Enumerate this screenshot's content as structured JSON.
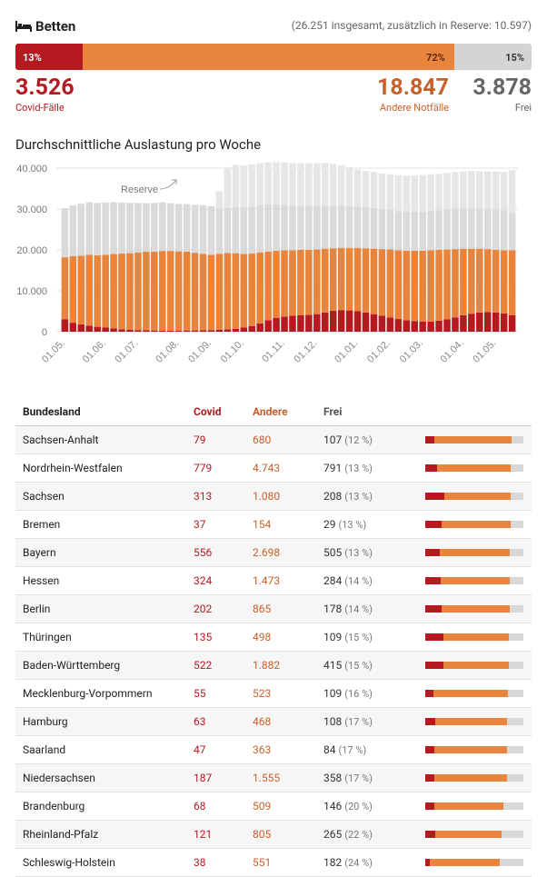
{
  "header": {
    "title": "Betten",
    "total_note": "(26.251 insgesamt, zusätzlich in Reserve: 10.597)"
  },
  "summary_bar": {
    "covid_pct": "13%",
    "other_pct": "72%",
    "free_pct": "15%",
    "covid_share": 13,
    "other_share": 72,
    "free_share": 15
  },
  "stats": {
    "covid": {
      "value": "3.526",
      "label": "Covid-Fälle"
    },
    "other": {
      "value": "18.847",
      "label": "Andere Notfälle"
    },
    "free": {
      "value": "3.878",
      "label": "Frei"
    }
  },
  "colors": {
    "covid": "#b51a20",
    "other": "#e8843c",
    "free": "#d4d4d4"
  },
  "chart_data": {
    "type": "bar",
    "title": "Durchschnittliche Auslastung pro Woche",
    "ylim": [
      0,
      40000
    ],
    "yticks": [
      "40.000",
      "30.000",
      "20.000",
      "10.000",
      "0"
    ],
    "ytick_values": [
      40000,
      30000,
      20000,
      10000,
      0
    ],
    "xtick_labels": [
      "01.05.",
      "01.06.",
      "01.07.",
      "01.08.",
      "01.09.",
      "01.10.",
      "01.11.",
      "01.12.",
      "01.01.",
      "01.02.",
      "01.03.",
      "01.04.",
      "01.05."
    ],
    "xtick_week_index": [
      0,
      5,
      9,
      14,
      18,
      22,
      27,
      31,
      36,
      40,
      44,
      49,
      53
    ],
    "annotation": "Reserve",
    "stacked": true,
    "series": [
      {
        "name": "Covid",
        "values": [
          3000,
          2200,
          1800,
          1500,
          1200,
          1000,
          800,
          600,
          500,
          400,
          350,
          300,
          250,
          250,
          250,
          300,
          300,
          350,
          400,
          450,
          550,
          700,
          1000,
          1400,
          2000,
          2800,
          3400,
          3700,
          3900,
          4000,
          4100,
          4300,
          4700,
          5100,
          5300,
          5200,
          5000,
          4700,
          4300,
          3900,
          3500,
          3100,
          2800,
          2600,
          2500,
          2500,
          2700,
          3000,
          3500,
          4000,
          4400,
          4700,
          4800,
          4700,
          4500,
          4000
        ]
      },
      {
        "name": "Andere",
        "values": [
          15200,
          16300,
          16800,
          17300,
          17500,
          17800,
          18200,
          18500,
          18700,
          19000,
          19200,
          19300,
          19500,
          19500,
          19400,
          19300,
          19000,
          18700,
          18400,
          18600,
          18700,
          18500,
          18000,
          17700,
          17400,
          16800,
          16400,
          16200,
          16000,
          16000,
          15900,
          15800,
          15600,
          15300,
          15200,
          15300,
          15500,
          15700,
          16000,
          16300,
          16600,
          16800,
          17000,
          17200,
          17300,
          17400,
          17300,
          17100,
          16700,
          16300,
          15900,
          15600,
          15400,
          15300,
          15400,
          15900
        ]
      },
      {
        "name": "Frei",
        "values": [
          12000,
          12400,
          12700,
          12900,
          12800,
          12800,
          12700,
          12500,
          12300,
          12100,
          11900,
          11900,
          11900,
          11700,
          11600,
          11600,
          11700,
          11850,
          11900,
          11000,
          11000,
          11300,
          11400,
          11500,
          11500,
          11500,
          11300,
          11100,
          10900,
          10800,
          10800,
          10700,
          10500,
          10400,
          10400,
          10200,
          10100,
          10000,
          10000,
          9800,
          9700,
          9600,
          9600,
          9600,
          9600,
          9700,
          9700,
          9800,
          9800,
          9800,
          9800,
          9700,
          9700,
          9800,
          9800,
          9100
        ]
      },
      {
        "name": "Reserve",
        "values": [
          0,
          0,
          0,
          0,
          0,
          0,
          0,
          0,
          0,
          0,
          0,
          0,
          0,
          0,
          0,
          0,
          0,
          0,
          0,
          4300,
          9700,
          10300,
          10300,
          10300,
          10300,
          10300,
          10400,
          10400,
          10400,
          10400,
          10400,
          10400,
          10500,
          10200,
          9800,
          9500,
          9100,
          8900,
          8800,
          8700,
          8700,
          8800,
          8800,
          8800,
          8900,
          8900,
          8900,
          8900,
          9000,
          9100,
          9200,
          9200,
          9300,
          9400,
          9400,
          10500
        ]
      }
    ]
  },
  "table": {
    "headers": {
      "name": "Bundesland",
      "covid": "Covid",
      "other": "Andere",
      "free": "Frei"
    },
    "rows": [
      {
        "name": "Sachsen-Anhalt",
        "covid": "79",
        "other": "680",
        "free": "107",
        "pct": "(12 %)",
        "c": 79,
        "o": 680,
        "f": 107
      },
      {
        "name": "Nordrhein-Westfalen",
        "covid": "779",
        "other": "4.743",
        "free": "791",
        "pct": "(13 %)",
        "c": 779,
        "o": 4743,
        "f": 791
      },
      {
        "name": "Sachsen",
        "covid": "313",
        "other": "1.080",
        "free": "208",
        "pct": "(13 %)",
        "c": 313,
        "o": 1080,
        "f": 208
      },
      {
        "name": "Bremen",
        "covid": "37",
        "other": "154",
        "free": "29",
        "pct": "(13 %)",
        "c": 37,
        "o": 154,
        "f": 29
      },
      {
        "name": "Bayern",
        "covid": "556",
        "other": "2.698",
        "free": "505",
        "pct": "(13 %)",
        "c": 556,
        "o": 2698,
        "f": 505
      },
      {
        "name": "Hessen",
        "covid": "324",
        "other": "1.473",
        "free": "284",
        "pct": "(14 %)",
        "c": 324,
        "o": 1473,
        "f": 284
      },
      {
        "name": "Berlin",
        "covid": "202",
        "other": "865",
        "free": "178",
        "pct": "(14 %)",
        "c": 202,
        "o": 865,
        "f": 178
      },
      {
        "name": "Thüringen",
        "covid": "135",
        "other": "498",
        "free": "109",
        "pct": "(15 %)",
        "c": 135,
        "o": 498,
        "f": 109
      },
      {
        "name": "Baden-Württemberg",
        "covid": "522",
        "other": "1.882",
        "free": "415",
        "pct": "(15 %)",
        "c": 522,
        "o": 1882,
        "f": 415
      },
      {
        "name": "Mecklenburg-Vorpommern",
        "covid": "55",
        "other": "523",
        "free": "109",
        "pct": "(16 %)",
        "c": 55,
        "o": 523,
        "f": 109
      },
      {
        "name": "Hamburg",
        "covid": "63",
        "other": "468",
        "free": "108",
        "pct": "(17 %)",
        "c": 63,
        "o": 468,
        "f": 108
      },
      {
        "name": "Saarland",
        "covid": "47",
        "other": "363",
        "free": "84",
        "pct": "(17 %)",
        "c": 47,
        "o": 363,
        "f": 84
      },
      {
        "name": "Niedersachsen",
        "covid": "187",
        "other": "1.555",
        "free": "358",
        "pct": "(17 %)",
        "c": 187,
        "o": 1555,
        "f": 358
      },
      {
        "name": "Brandenburg",
        "covid": "68",
        "other": "509",
        "free": "146",
        "pct": "(20 %)",
        "c": 68,
        "o": 509,
        "f": 146
      },
      {
        "name": "Rheinland-Pfalz",
        "covid": "121",
        "other": "805",
        "free": "265",
        "pct": "(22 %)",
        "c": 121,
        "o": 805,
        "f": 265
      },
      {
        "name": "Schleswig-Holstein",
        "covid": "38",
        "other": "551",
        "free": "182",
        "pct": "(24 %)",
        "c": 38,
        "o": 551,
        "f": 182
      }
    ]
  }
}
